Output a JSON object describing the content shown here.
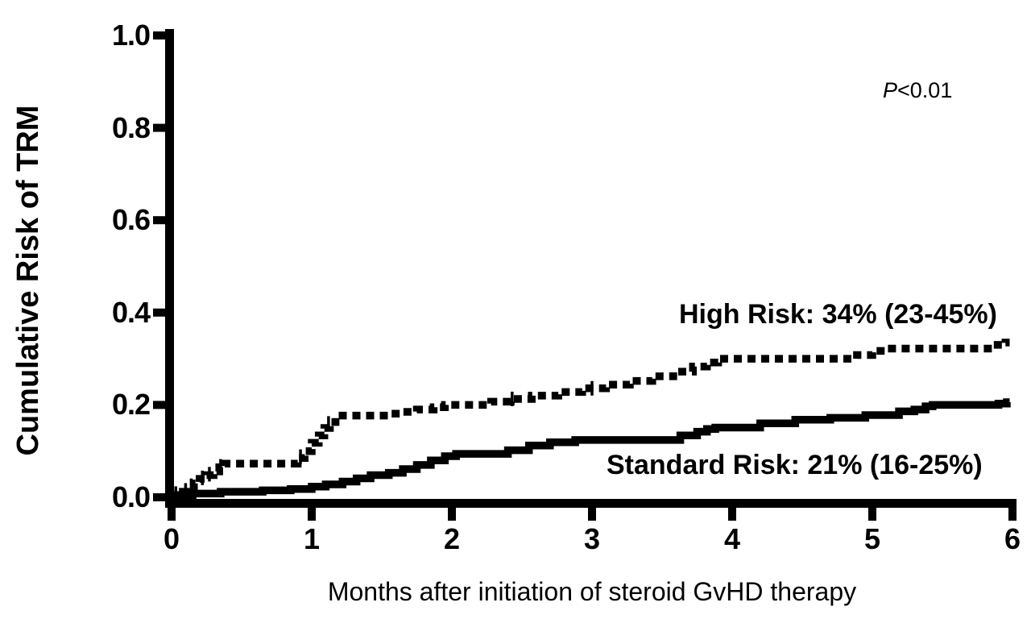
{
  "figure": {
    "p_value": {
      "symbol": "P",
      "comparison": "<0.01"
    }
  },
  "chart_data": {
    "type": "line",
    "subtype": "cumulative-incidence-step-curves",
    "title": "",
    "xlabel": "Months after initiation of steroid GvHD therapy",
    "ylabel": "Cumulative Risk of TRM",
    "xlim": [
      0,
      6
    ],
    "ylim": [
      0.0,
      1.0
    ],
    "grid": false,
    "legend_position": "annotations-on-plot",
    "annotation_p_value": "P<0.01",
    "x_end": 5.98,
    "xticks": [
      {
        "value": 0,
        "label": "0"
      },
      {
        "value": 1,
        "label": "1"
      },
      {
        "value": 2,
        "label": "2"
      },
      {
        "value": 3,
        "label": "3"
      },
      {
        "value": 4,
        "label": "4"
      },
      {
        "value": 5,
        "label": "5"
      },
      {
        "value": 6,
        "label": "6"
      }
    ],
    "yticks": [
      {
        "value": 1.0,
        "label": "1.0"
      },
      {
        "value": 0.8,
        "label": "0.8"
      },
      {
        "value": 0.6,
        "label": "0.6"
      },
      {
        "value": 0.4,
        "label": "0.4"
      },
      {
        "value": 0.2,
        "label": "0.2"
      },
      {
        "value": 0.0,
        "label": "0.0"
      }
    ],
    "series": [
      {
        "name": "High Risk",
        "label": "High Risk: 34% (23-45%)",
        "estimate": "34%",
        "ci": "23-45%",
        "style": "dotted",
        "color": "#000000",
        "steps": [
          [
            0.0,
            0.005
          ],
          [
            0.08,
            0.012
          ],
          [
            0.13,
            0.022
          ],
          [
            0.16,
            0.03
          ],
          [
            0.2,
            0.04
          ],
          [
            0.25,
            0.048
          ],
          [
            0.3,
            0.056
          ],
          [
            0.34,
            0.065
          ],
          [
            0.38,
            0.073
          ],
          [
            0.9,
            0.085
          ],
          [
            0.95,
            0.1
          ],
          [
            1.0,
            0.118
          ],
          [
            1.05,
            0.134
          ],
          [
            1.09,
            0.15
          ],
          [
            1.13,
            0.163
          ],
          [
            1.17,
            0.177
          ],
          [
            1.55,
            0.181
          ],
          [
            1.65,
            0.185
          ],
          [
            1.75,
            0.19
          ],
          [
            1.87,
            0.195
          ],
          [
            1.95,
            0.2
          ],
          [
            2.28,
            0.207
          ],
          [
            2.42,
            0.213
          ],
          [
            2.57,
            0.22
          ],
          [
            2.76,
            0.228
          ],
          [
            2.93,
            0.236
          ],
          [
            3.1,
            0.244
          ],
          [
            3.27,
            0.252
          ],
          [
            3.43,
            0.262
          ],
          [
            3.58,
            0.272
          ],
          [
            3.72,
            0.283
          ],
          [
            3.82,
            0.292
          ],
          [
            3.9,
            0.3
          ],
          [
            4.89,
            0.308
          ],
          [
            5.0,
            0.317
          ],
          [
            5.09,
            0.322
          ],
          [
            5.86,
            0.33
          ],
          [
            5.95,
            0.335
          ]
        ],
        "censor_marks": [
          [
            0.03,
            0.008
          ],
          [
            0.1,
            0.015
          ],
          [
            0.14,
            0.025
          ],
          [
            0.22,
            0.042
          ],
          [
            0.27,
            0.05
          ],
          [
            0.35,
            0.067
          ],
          [
            0.92,
            0.088
          ],
          [
            1.12,
            0.16
          ],
          [
            2.43,
            0.213
          ],
          [
            3.0,
            0.236
          ]
        ]
      },
      {
        "name": "Standard Risk",
        "label": "Standard Risk: 21% (16-25%)",
        "estimate": "21%",
        "ci": "16-25%",
        "style": "solid",
        "color": "#000000",
        "steps": [
          [
            0.0,
            0.003
          ],
          [
            0.15,
            0.008
          ],
          [
            0.35,
            0.012
          ],
          [
            0.65,
            0.015
          ],
          [
            0.85,
            0.018
          ],
          [
            1.0,
            0.023
          ],
          [
            1.1,
            0.028
          ],
          [
            1.22,
            0.034
          ],
          [
            1.32,
            0.041
          ],
          [
            1.42,
            0.048
          ],
          [
            1.55,
            0.053
          ],
          [
            1.65,
            0.061
          ],
          [
            1.75,
            0.07
          ],
          [
            1.85,
            0.08
          ],
          [
            1.95,
            0.089
          ],
          [
            2.03,
            0.094
          ],
          [
            2.4,
            0.102
          ],
          [
            2.55,
            0.112
          ],
          [
            2.7,
            0.119
          ],
          [
            2.88,
            0.124
          ],
          [
            3.63,
            0.134
          ],
          [
            3.75,
            0.142
          ],
          [
            3.82,
            0.148
          ],
          [
            3.88,
            0.151
          ],
          [
            4.2,
            0.16
          ],
          [
            4.45,
            0.168
          ],
          [
            4.7,
            0.172
          ],
          [
            4.95,
            0.178
          ],
          [
            5.19,
            0.186
          ],
          [
            5.3,
            0.19
          ],
          [
            5.38,
            0.197
          ],
          [
            5.43,
            0.2
          ],
          [
            5.9,
            0.203
          ],
          [
            5.96,
            0.206
          ]
        ],
        "censor_marks": []
      }
    ]
  }
}
